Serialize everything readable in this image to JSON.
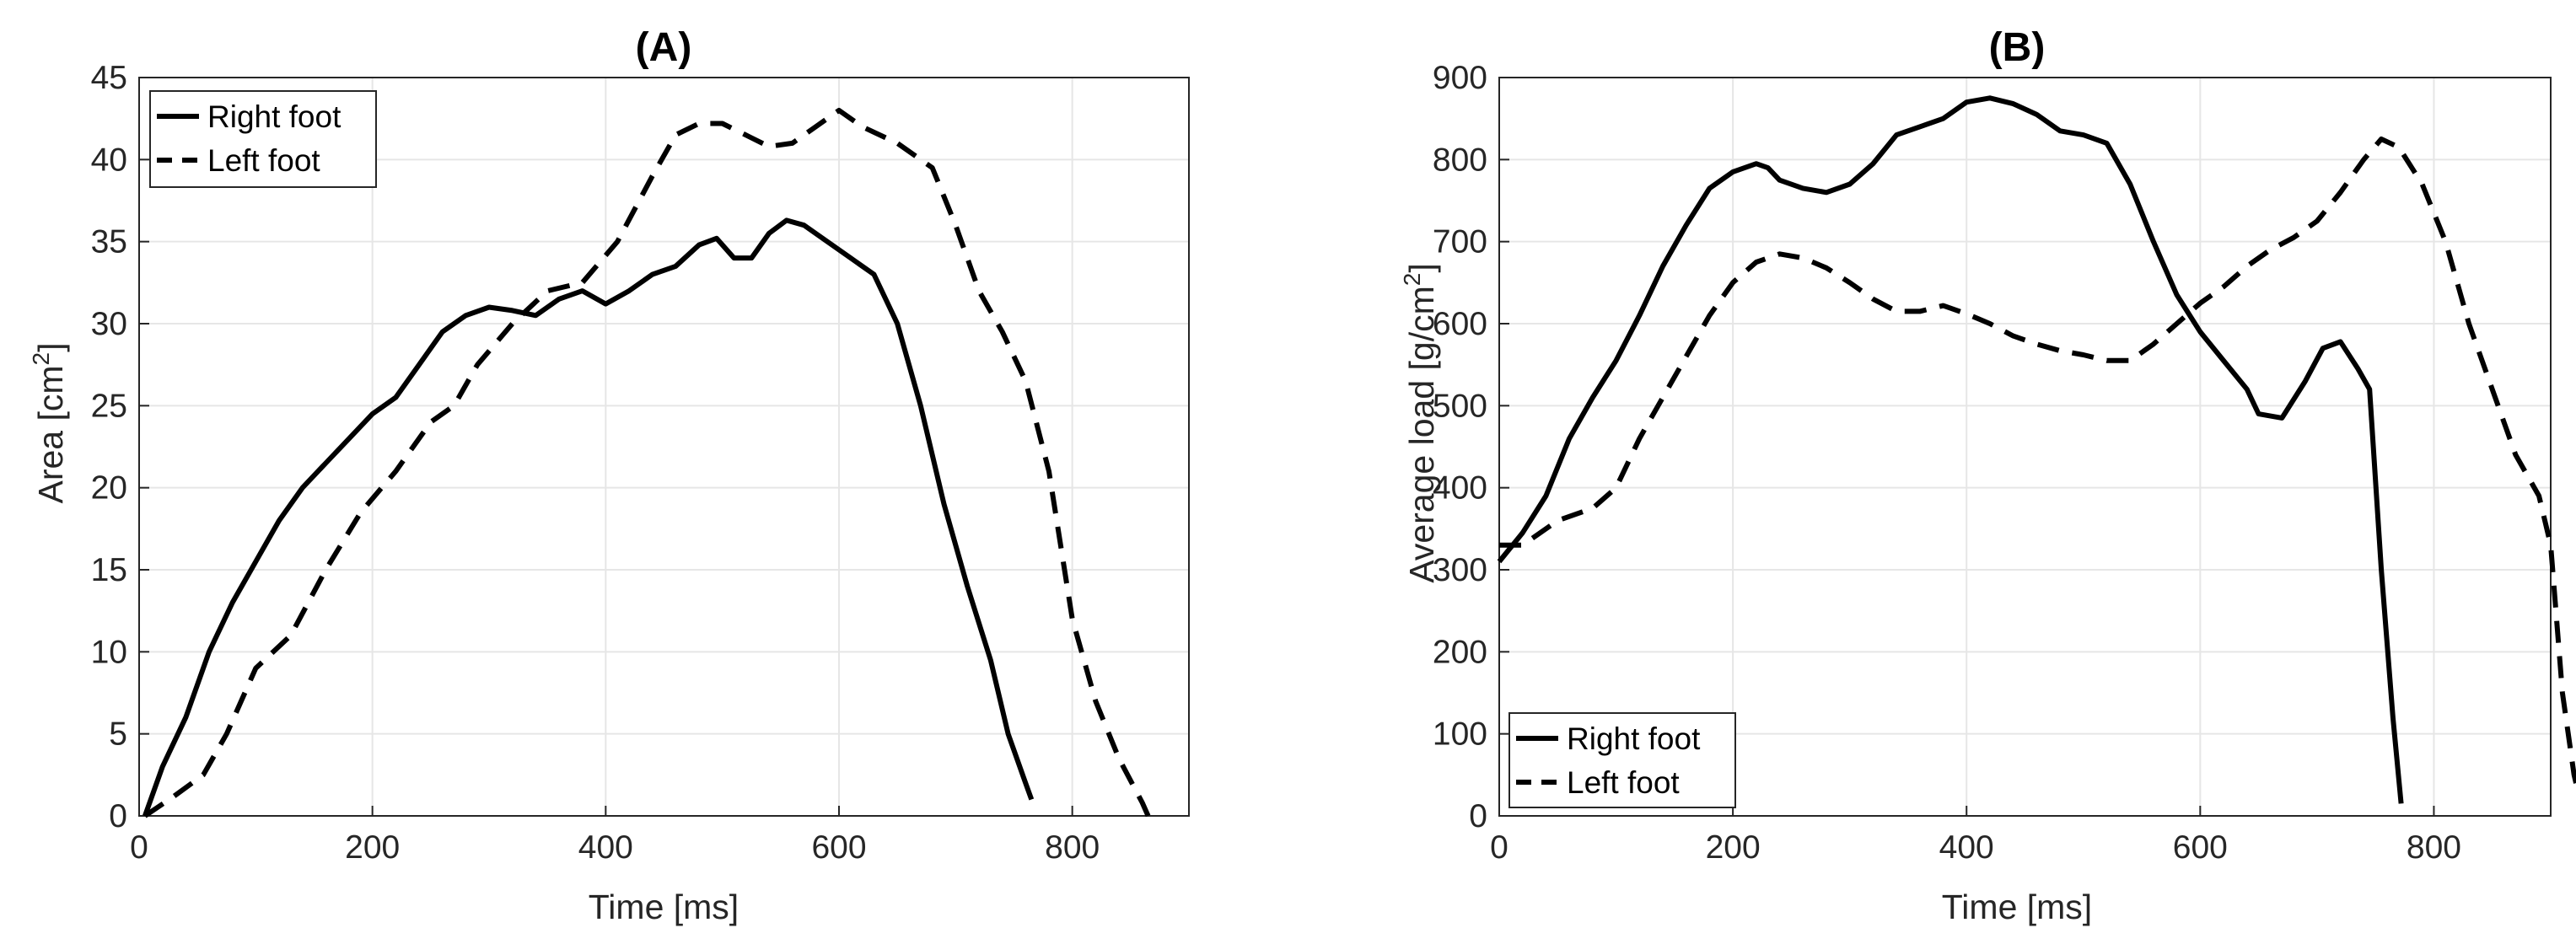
{
  "chart_data": [
    {
      "type": "line",
      "title": "(A)",
      "xlabel": "Time [ms]",
      "ylabel_main": "Area [cm",
      "ylabel_sup": "2",
      "ylabel_tail": "]",
      "xlim": [
        0,
        900
      ],
      "ylim": [
        0,
        45
      ],
      "xticks": [
        0,
        200,
        400,
        600,
        800
      ],
      "yticks": [
        0,
        5,
        10,
        15,
        20,
        25,
        30,
        35,
        40,
        45
      ],
      "grid": true,
      "legend_position": "top-left",
      "series": [
        {
          "name": "Right foot",
          "style": "solid",
          "color": "#000000",
          "points": [
            [
              5,
              0
            ],
            [
              20,
              3
            ],
            [
              40,
              6
            ],
            [
              60,
              10
            ],
            [
              80,
              13
            ],
            [
              100,
              15.5
            ],
            [
              120,
              18
            ],
            [
              140,
              20
            ],
            [
              160,
              21.5
            ],
            [
              180,
              23
            ],
            [
              200,
              24.5
            ],
            [
              220,
              25.5
            ],
            [
              240,
              27.5
            ],
            [
              260,
              29.5
            ],
            [
              280,
              30.5
            ],
            [
              300,
              31
            ],
            [
              320,
              30.8
            ],
            [
              340,
              30.5
            ],
            [
              360,
              31.5
            ],
            [
              380,
              32
            ],
            [
              400,
              31.2
            ],
            [
              420,
              32
            ],
            [
              440,
              33
            ],
            [
              460,
              33.5
            ],
            [
              480,
              34.8
            ],
            [
              495,
              35.2
            ],
            [
              510,
              34
            ],
            [
              525,
              34
            ],
            [
              540,
              35.5
            ],
            [
              555,
              36.3
            ],
            [
              570,
              36
            ],
            [
              590,
              35
            ],
            [
              610,
              34
            ],
            [
              630,
              33
            ],
            [
              650,
              30
            ],
            [
              670,
              25
            ],
            [
              690,
              19
            ],
            [
              710,
              14
            ],
            [
              730,
              9.5
            ],
            [
              745,
              5
            ],
            [
              760,
              2
            ],
            [
              765,
              1
            ]
          ]
        },
        {
          "name": "Left foot",
          "style": "dashed",
          "color": "#000000",
          "points": [
            [
              5,
              0
            ],
            [
              30,
              1.2
            ],
            [
              55,
              2.5
            ],
            [
              75,
              5
            ],
            [
              100,
              9
            ],
            [
              130,
              11
            ],
            [
              160,
              15
            ],
            [
              190,
              18.5
            ],
            [
              220,
              21
            ],
            [
              250,
              24
            ],
            [
              270,
              25
            ],
            [
              290,
              27.5
            ],
            [
              320,
              30
            ],
            [
              350,
              32
            ],
            [
              380,
              32.5
            ],
            [
              410,
              35
            ],
            [
              440,
              39
            ],
            [
              460,
              41.5
            ],
            [
              480,
              42.2
            ],
            [
              500,
              42.2
            ],
            [
              520,
              41.5
            ],
            [
              540,
              40.8
            ],
            [
              560,
              41
            ],
            [
              580,
              42
            ],
            [
              600,
              43
            ],
            [
              620,
              42
            ],
            [
              650,
              41
            ],
            [
              680,
              39.5
            ],
            [
              700,
              36
            ],
            [
              720,
              32
            ],
            [
              740,
              29.5
            ],
            [
              760,
              26.5
            ],
            [
              780,
              21
            ],
            [
              800,
              12
            ],
            [
              820,
              7
            ],
            [
              840,
              3.5
            ],
            [
              860,
              0.8
            ],
            [
              865,
              0
            ]
          ]
        }
      ]
    },
    {
      "type": "line",
      "title": "(B)",
      "xlabel": "Time [ms]",
      "ylabel_main": "Average load [g/cm",
      "ylabel_sup": "2",
      "ylabel_tail": "]",
      "xlim": [
        0,
        900
      ],
      "ylim": [
        0,
        900
      ],
      "xticks": [
        0,
        200,
        400,
        600,
        800
      ],
      "yticks": [
        0,
        100,
        200,
        300,
        400,
        500,
        600,
        700,
        800,
        900
      ],
      "grid": true,
      "legend_position": "bottom-left",
      "series": [
        {
          "name": "Right foot",
          "style": "solid",
          "color": "#000000",
          "points": [
            [
              0,
              310
            ],
            [
              20,
              345
            ],
            [
              40,
              390
            ],
            [
              60,
              460
            ],
            [
              80,
              510
            ],
            [
              100,
              555
            ],
            [
              120,
              610
            ],
            [
              140,
              670
            ],
            [
              160,
              720
            ],
            [
              180,
              765
            ],
            [
              200,
              785
            ],
            [
              220,
              795
            ],
            [
              230,
              790
            ],
            [
              240,
              775
            ],
            [
              260,
              765
            ],
            [
              280,
              760
            ],
            [
              300,
              770
            ],
            [
              320,
              795
            ],
            [
              340,
              830
            ],
            [
              360,
              840
            ],
            [
              380,
              850
            ],
            [
              400,
              870
            ],
            [
              420,
              875
            ],
            [
              440,
              868
            ],
            [
              460,
              855
            ],
            [
              480,
              835
            ],
            [
              500,
              830
            ],
            [
              520,
              820
            ],
            [
              540,
              770
            ],
            [
              560,
              700
            ],
            [
              580,
              635
            ],
            [
              600,
              590
            ],
            [
              620,
              555
            ],
            [
              640,
              520
            ],
            [
              650,
              490
            ],
            [
              670,
              485
            ],
            [
              690,
              530
            ],
            [
              705,
              570
            ],
            [
              720,
              578
            ],
            [
              735,
              545
            ],
            [
              745,
              520
            ],
            [
              755,
              300
            ],
            [
              765,
              120
            ],
            [
              772,
              15
            ]
          ]
        },
        {
          "name": "Left foot",
          "style": "dashed",
          "color": "#000000",
          "points": [
            [
              0,
              330
            ],
            [
              20,
              330
            ],
            [
              50,
              360
            ],
            [
              80,
              375
            ],
            [
              100,
              400
            ],
            [
              120,
              460
            ],
            [
              140,
              510
            ],
            [
              160,
              560
            ],
            [
              180,
              610
            ],
            [
              200,
              650
            ],
            [
              220,
              675
            ],
            [
              240,
              685
            ],
            [
              260,
              680
            ],
            [
              280,
              668
            ],
            [
              300,
              650
            ],
            [
              320,
              630
            ],
            [
              340,
              615
            ],
            [
              360,
              615
            ],
            [
              380,
              622
            ],
            [
              400,
              612
            ],
            [
              420,
              600
            ],
            [
              440,
              585
            ],
            [
              460,
              575
            ],
            [
              480,
              567
            ],
            [
              500,
              562
            ],
            [
              520,
              555
            ],
            [
              540,
              555
            ],
            [
              560,
              575
            ],
            [
              580,
              600
            ],
            [
              600,
              625
            ],
            [
              620,
              645
            ],
            [
              640,
              670
            ],
            [
              660,
              690
            ],
            [
              680,
              705
            ],
            [
              700,
              725
            ],
            [
              720,
              760
            ],
            [
              740,
              800
            ],
            [
              755,
              825
            ],
            [
              770,
              815
            ],
            [
              790,
              770
            ],
            [
              810,
              700
            ],
            [
              830,
              600
            ],
            [
              850,
              520
            ],
            [
              870,
              440
            ],
            [
              890,
              390
            ],
            [
              900,
              330
            ],
            [
              910,
              150
            ],
            [
              920,
              50
            ],
            [
              925,
              20
            ]
          ]
        }
      ]
    }
  ]
}
